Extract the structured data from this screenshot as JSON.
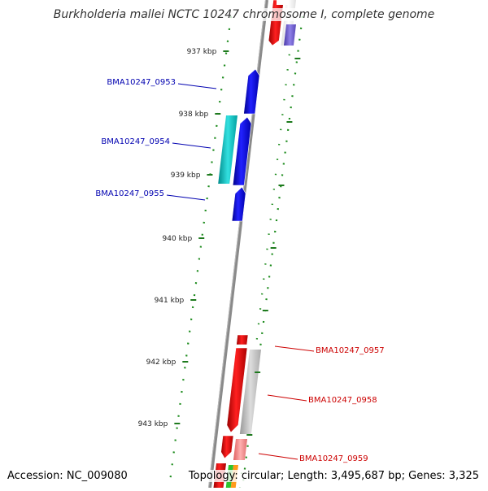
{
  "title": "Burkholderia mallei NCTC 10247 chromosome I, complete genome",
  "footer": {
    "accession": "Accession: NC_009080",
    "summary": "Topology: circular; Length: 3,495,687 bp; Genes: 3,325"
  },
  "ticks": [
    "937 kbp",
    "938 kbp",
    "939 kbp",
    "940 kbp",
    "941 kbp",
    "942 kbp",
    "943 kbp"
  ],
  "gene_labels": [
    {
      "name": "BMA10247_0953",
      "color": "#0000b0"
    },
    {
      "name": "BMA10247_0954",
      "color": "#0000b0"
    },
    {
      "name": "BMA10247_0955",
      "color": "#0000b0"
    },
    {
      "name": "BMA10247_0957",
      "color": "#cc0000"
    },
    {
      "name": "BMA10247_0958",
      "color": "#cc0000"
    },
    {
      "name": "BMA10247_0959",
      "color": "#cc0000"
    }
  ],
  "colors": {
    "backbone": "#8a8a8a",
    "tick": "#1e7a1e",
    "dotted_ring": "#1e8c1e",
    "forward_gene": "#0000ee",
    "reverse_gene": "#ee0000",
    "cds_cyan": "#00c8c8",
    "gray_feature": "#bbbbbb",
    "pink_feature": "#f08080",
    "purple_feature": "#6a5acd"
  }
}
